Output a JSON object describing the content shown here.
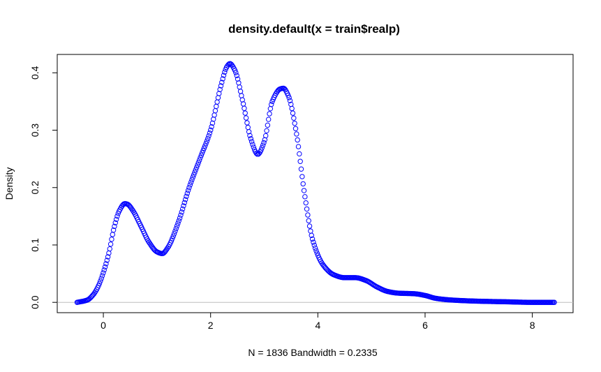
{
  "chart_data": {
    "type": "scatter",
    "title": "density.default(x = train$realp)",
    "xlabel": "N = 1836   Bandwidth = 0.2335",
    "ylabel": "Density",
    "xlim": [
      -0.86,
      8.76
    ],
    "ylim": [
      -0.018,
      0.432
    ],
    "x_ticks": [
      0,
      2,
      4,
      6,
      8
    ],
    "y_ticks": [
      0.0,
      0.1,
      0.2,
      0.3,
      0.4
    ],
    "x_tick_labels": [
      "0",
      "2",
      "4",
      "6",
      "8"
    ],
    "y_tick_labels": [
      "0.0",
      "0.1",
      "0.2",
      "0.3",
      "0.4"
    ],
    "baseline": 0,
    "marker": "open-circle",
    "point_color": "#0000ff",
    "baseline_color": "#bebebe",
    "n_points": 512,
    "series": [
      {
        "x": [
          -0.49,
          -0.3,
          -0.2,
          -0.1,
          0.0,
          0.1,
          0.2,
          0.3,
          0.4,
          0.45,
          0.55,
          0.7,
          0.85,
          1.0,
          1.1,
          1.2,
          1.4,
          1.6,
          1.8,
          2.0,
          2.2,
          2.3,
          2.36,
          2.45,
          2.6,
          2.75,
          2.88,
          3.0,
          3.15,
          3.3,
          3.36,
          3.45,
          3.6,
          3.75,
          3.9,
          4.1,
          4.3,
          4.5,
          4.7,
          4.9,
          5.1,
          5.3,
          5.5,
          5.8,
          6.0,
          6.2,
          6.5,
          7.0,
          7.5,
          8.0,
          8.41
        ],
        "y": [
          0.0,
          0.004,
          0.012,
          0.027,
          0.052,
          0.085,
          0.13,
          0.16,
          0.172,
          0.171,
          0.16,
          0.133,
          0.105,
          0.088,
          0.085,
          0.095,
          0.14,
          0.2,
          0.25,
          0.3,
          0.38,
          0.41,
          0.416,
          0.405,
          0.35,
          0.285,
          0.258,
          0.28,
          0.35,
          0.372,
          0.373,
          0.36,
          0.295,
          0.19,
          0.11,
          0.065,
          0.048,
          0.043,
          0.043,
          0.038,
          0.027,
          0.019,
          0.016,
          0.015,
          0.012,
          0.007,
          0.004,
          0.002,
          0.001,
          0.0,
          0.0
        ]
      }
    ]
  }
}
